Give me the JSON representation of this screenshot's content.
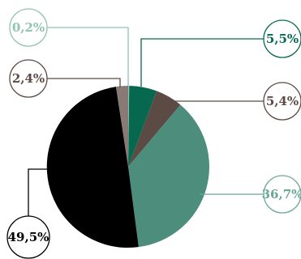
{
  "chart_data": {
    "type": "pie",
    "title": "",
    "slices": [
      {
        "label": "0,2%",
        "value": 0.2,
        "color": "#8fc4ae",
        "label_color": "#8fc4ae"
      },
      {
        "label": "5,5%",
        "value": 5.5,
        "color": "#05684f",
        "label_color": "#05684f"
      },
      {
        "label": "5,4%",
        "value": 5.4,
        "color": "#5c4a45",
        "label_color": "#5c4a45"
      },
      {
        "label": "36,7%",
        "value": 36.7,
        "color": "#4c8d7c",
        "label_color": "#6aa896"
      },
      {
        "label": "49,5%",
        "value": 49.5,
        "color": "#000000",
        "label_color": "#000000"
      },
      {
        "label": "2,4%",
        "value": 2.4,
        "color": "#8a7a75",
        "label_color": "#5c4a45"
      }
    ],
    "start_angle_deg": 0,
    "direction": "clockwise"
  }
}
